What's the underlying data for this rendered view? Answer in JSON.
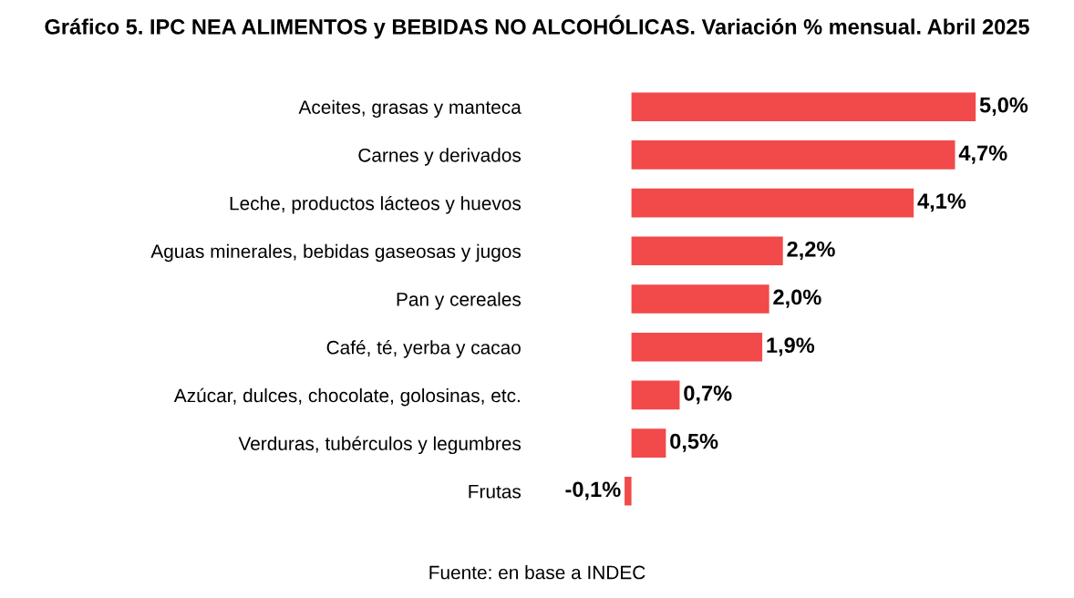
{
  "chart_data": {
    "type": "bar",
    "orientation": "horizontal",
    "title": "Gráfico 5. IPC NEA ALIMENTOS y BEBIDAS NO ALCOHÓLICAS. Variación % mensual. Abril 2025",
    "categories": [
      "Aceites, grasas y manteca",
      "Carnes y derivados",
      "Leche, productos lácteos y huevos",
      "Aguas minerales, bebidas gaseosas y jugos",
      "Pan y cereales",
      "Café, té, yerba y cacao",
      "Azúcar, dulces, chocolate, golosinas, etc.",
      "Verduras, tubérculos y legumbres",
      "Frutas"
    ],
    "values": [
      5.0,
      4.7,
      4.1,
      2.2,
      2.0,
      1.9,
      0.7,
      0.5,
      -0.1
    ],
    "value_labels": [
      "5,0%",
      "4,7%",
      "4,1%",
      "2,2%",
      "2,0%",
      "1,9%",
      "0,7%",
      "0,5%",
      "-0,1%"
    ],
    "color": "#f24a4a",
    "annotations": [
      "Fuente: en base a INDEC"
    ],
    "grid": false,
    "legend": false
  }
}
